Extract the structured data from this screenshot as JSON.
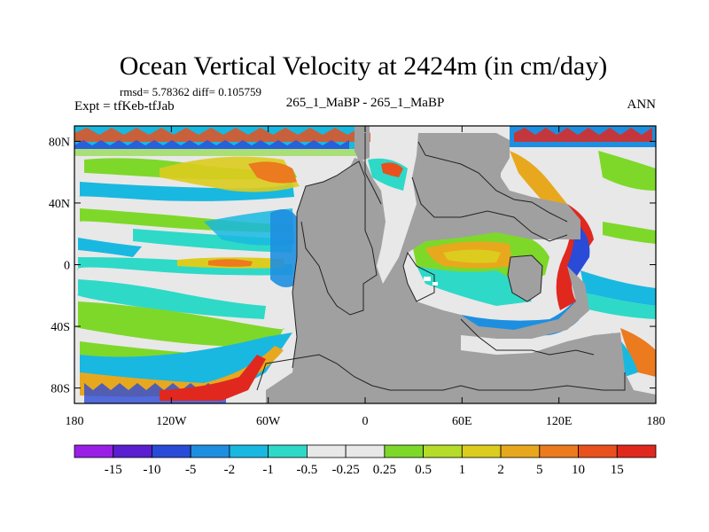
{
  "chart_data": {
    "type": "heatmap",
    "title": "Ocean Vertical Velocity at 2424m (in cm/day)",
    "stats": "rmsd= 5.78362 diff= 0.105759",
    "left_label": "Expt = tfKeb-tfJab",
    "center_label": "265_1_MaBP - 265_1_MaBP",
    "right_label": "ANN",
    "x_ticks": [
      {
        "value": -180,
        "label": "180"
      },
      {
        "value": -120,
        "label": "120W"
      },
      {
        "value": -60,
        "label": "60W"
      },
      {
        "value": 0,
        "label": "0"
      },
      {
        "value": 60,
        "label": "60E"
      },
      {
        "value": 120,
        "label": "120E"
      },
      {
        "value": 180,
        "label": "180"
      }
    ],
    "y_ticks": [
      {
        "value": 80,
        "label": "80N"
      },
      {
        "value": 40,
        "label": "40N"
      },
      {
        "value": 0,
        "label": "0"
      },
      {
        "value": -40,
        "label": "40S"
      },
      {
        "value": -80,
        "label": "80S"
      }
    ],
    "xlim": [
      -180,
      180
    ],
    "ylim": [
      -90,
      90
    ],
    "colorbar": {
      "colors": [
        "#9a1fe6",
        "#5a1fd0",
        "#2a4bd8",
        "#1e8fe0",
        "#19b8e0",
        "#2ed9c8",
        "#e8e8e8",
        "#e8e8e8",
        "#7ed82a",
        "#b4dc28",
        "#dccc1e",
        "#e8a81e",
        "#ec7a1e",
        "#e8501e",
        "#e0281e"
      ],
      "labels": [
        "-15",
        "-10",
        "-5",
        "-2",
        "-1",
        "-0.5",
        "-0.25",
        "0.25",
        "0.5",
        "1",
        "2",
        "5",
        "10",
        "15"
      ]
    },
    "land_color": "#a0a0a0"
  }
}
